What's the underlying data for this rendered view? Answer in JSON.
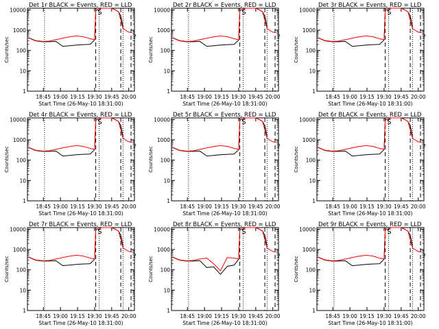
{
  "figure": {
    "ylabel": "Counts/sec",
    "xlabel": "Start Time (26-May-10 18:31:00)",
    "x_ticks": [
      "18:45",
      "19:00",
      "19:15",
      "19:30",
      "19:45",
      "20:00"
    ],
    "y_ticks": [
      "1",
      "10",
      "100",
      "1000",
      "10000"
    ],
    "colors": {
      "events": "#000000",
      "lld": "#ff0000",
      "axes": "#000000",
      "background": "#ffffff"
    },
    "y_scale": "log",
    "vertical_markers": {
      "dotted": [
        "18:46",
        "19:34",
        "19:55"
      ],
      "dashed": [
        "19:31",
        "19:53",
        "20:02"
      ]
    },
    "annotations": {
      "peak_marker": "S",
      "tail_marker": "?"
    }
  },
  "chart_data": [
    {
      "type": "line",
      "title": "Det 1r BLACK = Events, RED = LLD",
      "x": [
        "18:32",
        "18:38",
        "18:44",
        "18:50",
        "18:56",
        "19:02",
        "19:08",
        "19:14",
        "19:20",
        "19:26",
        "19:30",
        "19:31",
        "19:32",
        "19:34",
        "19:36",
        "19:45",
        "19:48",
        "19:51",
        "19:53",
        "19:55",
        "19:57",
        "20:00",
        "20:03"
      ],
      "series": [
        {
          "name": "Events",
          "color": "#000000",
          "values": [
            420,
            300,
            270,
            270,
            280,
            160,
            170,
            185,
            195,
            200,
            330,
            9000,
            10000,
            10000,
            12000,
            12000,
            10000,
            8000,
            5000,
            1500,
            null,
            null,
            null
          ]
        },
        {
          "name": "LLD",
          "color": "#ff0000",
          "values": [
            430,
            310,
            280,
            290,
            340,
            400,
            470,
            520,
            480,
            380,
            340,
            9000,
            10000,
            10000,
            12000,
            12000,
            10000,
            8000,
            3000,
            1200,
            1000,
            800,
            750
          ]
        }
      ],
      "xlim": [
        "18:31",
        "20:05"
      ],
      "ylim": [
        1,
        12000
      ]
    },
    {
      "type": "line",
      "title": "Det 2r BLACK = Events, RED = LLD",
      "x": [
        "18:32",
        "18:38",
        "18:44",
        "18:50",
        "18:56",
        "19:02",
        "19:08",
        "19:14",
        "19:20",
        "19:26",
        "19:30",
        "19:31",
        "19:32",
        "19:34",
        "19:36",
        "19:45",
        "19:48",
        "19:51",
        "19:53",
        "19:55",
        "19:57",
        "20:00",
        "20:03"
      ],
      "series": [
        {
          "name": "Events",
          "color": "#000000",
          "values": [
            420,
            300,
            270,
            270,
            280,
            160,
            170,
            185,
            195,
            200,
            330,
            9000,
            10000,
            10000,
            12000,
            12000,
            10000,
            8000,
            5000,
            1500,
            null,
            null,
            null
          ]
        },
        {
          "name": "LLD",
          "color": "#ff0000",
          "values": [
            430,
            310,
            280,
            290,
            340,
            400,
            470,
            520,
            480,
            380,
            340,
            9000,
            10000,
            10000,
            12000,
            12000,
            10000,
            8000,
            3000,
            1200,
            1000,
            800,
            750
          ]
        }
      ],
      "xlim": [
        "18:31",
        "20:05"
      ],
      "ylim": [
        1,
        12000
      ]
    },
    {
      "type": "line",
      "title": "Det 3r BLACK = Events, RED = LLD",
      "x": [
        "18:32",
        "18:38",
        "18:44",
        "18:50",
        "18:56",
        "19:02",
        "19:08",
        "19:14",
        "19:20",
        "19:26",
        "19:30",
        "19:31",
        "19:32",
        "19:34",
        "19:36",
        "19:45",
        "19:48",
        "19:51",
        "19:53",
        "19:55",
        "19:57",
        "20:00",
        "20:03"
      ],
      "series": [
        {
          "name": "Events",
          "color": "#000000",
          "values": [
            420,
            300,
            270,
            270,
            280,
            160,
            170,
            185,
            195,
            200,
            330,
            9000,
            10000,
            10000,
            12000,
            12000,
            10000,
            8000,
            5000,
            1500,
            null,
            null,
            null
          ]
        },
        {
          "name": "LLD",
          "color": "#ff0000",
          "values": [
            430,
            310,
            280,
            290,
            340,
            400,
            470,
            520,
            480,
            380,
            340,
            9000,
            10000,
            10000,
            12000,
            12000,
            10000,
            8000,
            3000,
            1200,
            1000,
            800,
            750
          ]
        }
      ],
      "xlim": [
        "18:31",
        "20:05"
      ],
      "ylim": [
        1,
        12000
      ]
    },
    {
      "type": "line",
      "title": "Det 4r BLACK = Events, RED = LLD",
      "x": [
        "18:32",
        "18:38",
        "18:44",
        "18:50",
        "18:56",
        "19:02",
        "19:08",
        "19:14",
        "19:20",
        "19:26",
        "19:30",
        "19:31",
        "19:32",
        "19:34",
        "19:36",
        "19:45",
        "19:48",
        "19:51",
        "19:53",
        "19:55",
        "19:57",
        "20:00",
        "20:03"
      ],
      "series": [
        {
          "name": "Events",
          "color": "#000000",
          "values": [
            420,
            300,
            270,
            270,
            280,
            160,
            170,
            185,
            195,
            200,
            330,
            9000,
            10000,
            10000,
            12000,
            12000,
            10000,
            8000,
            5000,
            1500,
            null,
            null,
            null
          ]
        },
        {
          "name": "LLD",
          "color": "#ff0000",
          "values": [
            430,
            310,
            280,
            290,
            340,
            400,
            470,
            520,
            480,
            380,
            340,
            9000,
            10000,
            10000,
            12000,
            12000,
            10000,
            8000,
            3000,
            1200,
            1000,
            800,
            750
          ]
        }
      ],
      "xlim": [
        "18:31",
        "20:05"
      ],
      "ylim": [
        1,
        12000
      ]
    },
    {
      "type": "line",
      "title": "Det 5r BLACK = Events, RED = LLD",
      "x": [
        "18:32",
        "18:38",
        "18:44",
        "18:50",
        "18:56",
        "19:02",
        "19:08",
        "19:14",
        "19:20",
        "19:26",
        "19:30",
        "19:31",
        "19:32",
        "19:34",
        "19:36",
        "19:45",
        "19:48",
        "19:51",
        "19:53",
        "19:55",
        "19:57",
        "20:00",
        "20:03"
      ],
      "series": [
        {
          "name": "Events",
          "color": "#000000",
          "values": [
            420,
            300,
            270,
            270,
            280,
            160,
            170,
            185,
            195,
            200,
            330,
            9000,
            10000,
            10000,
            12000,
            12000,
            10000,
            8000,
            5000,
            1500,
            null,
            null,
            null
          ]
        },
        {
          "name": "LLD",
          "color": "#ff0000",
          "values": [
            430,
            310,
            280,
            290,
            340,
            400,
            470,
            520,
            480,
            380,
            340,
            9000,
            10000,
            10000,
            12000,
            12000,
            10000,
            8000,
            3000,
            1200,
            1000,
            800,
            750
          ]
        }
      ],
      "xlim": [
        "18:31",
        "20:05"
      ],
      "ylim": [
        1,
        12000
      ]
    },
    {
      "type": "line",
      "title": "Det 6r BLACK = Events, RED = LLD",
      "x": [
        "18:32",
        "18:38",
        "18:44",
        "18:50",
        "18:56",
        "19:02",
        "19:08",
        "19:14",
        "19:20",
        "19:26",
        "19:30",
        "19:31",
        "19:32",
        "19:34",
        "19:36",
        "19:45",
        "19:48",
        "19:51",
        "19:53",
        "19:55",
        "19:57",
        "20:00",
        "20:03"
      ],
      "series": [
        {
          "name": "Events",
          "color": "#000000",
          "values": [
            420,
            300,
            270,
            270,
            280,
            160,
            170,
            185,
            195,
            200,
            330,
            9000,
            10000,
            10000,
            12000,
            12000,
            10000,
            8000,
            5000,
            1500,
            null,
            null,
            null
          ]
        },
        {
          "name": "LLD",
          "color": "#ff0000",
          "values": [
            430,
            310,
            280,
            290,
            340,
            400,
            470,
            520,
            480,
            380,
            340,
            9000,
            10000,
            10000,
            12000,
            12000,
            10000,
            8000,
            3000,
            1200,
            1000,
            800,
            750
          ]
        }
      ],
      "xlim": [
        "18:31",
        "20:05"
      ],
      "ylim": [
        1,
        12000
      ]
    },
    {
      "type": "line",
      "title": "Det 7r BLACK = Events, RED = LLD",
      "x": [
        "18:32",
        "18:38",
        "18:44",
        "18:50",
        "18:56",
        "19:02",
        "19:08",
        "19:14",
        "19:20",
        "19:26",
        "19:30",
        "19:31",
        "19:32",
        "19:34",
        "19:36",
        "19:45",
        "19:48",
        "19:51",
        "19:53",
        "19:55",
        "19:57",
        "20:00",
        "20:03"
      ],
      "series": [
        {
          "name": "Events",
          "color": "#000000",
          "values": [
            420,
            300,
            270,
            270,
            280,
            160,
            170,
            185,
            195,
            200,
            330,
            9000,
            10000,
            10000,
            12000,
            12000,
            10000,
            8000,
            5000,
            1500,
            null,
            null,
            null
          ]
        },
        {
          "name": "LLD",
          "color": "#ff0000",
          "values": [
            430,
            310,
            280,
            290,
            340,
            400,
            470,
            520,
            480,
            380,
            340,
            9000,
            10000,
            10000,
            12000,
            12000,
            10000,
            8000,
            3000,
            1200,
            1000,
            800,
            750
          ]
        }
      ],
      "xlim": [
        "18:31",
        "20:05"
      ],
      "ylim": [
        1,
        12000
      ]
    },
    {
      "type": "line",
      "title": "Det 8r BLACK = Events, RED = LLD",
      "x": [
        "18:32",
        "18:38",
        "18:44",
        "18:50",
        "18:56",
        "19:02",
        "19:08",
        "19:14",
        "19:20",
        "19:26",
        "19:30",
        "19:31",
        "19:32",
        "19:34",
        "19:36",
        "19:45",
        "19:48",
        "19:51",
        "19:53",
        "19:55",
        "19:57",
        "20:00",
        "20:03"
      ],
      "series": [
        {
          "name": "Events",
          "color": "#000000",
          "values": [
            420,
            300,
            270,
            270,
            280,
            130,
            140,
            60,
            150,
            170,
            330,
            9000,
            10000,
            10000,
            12000,
            12000,
            10000,
            8000,
            5000,
            1500,
            null,
            null,
            null
          ]
        },
        {
          "name": "LLD",
          "color": "#ff0000",
          "values": [
            430,
            310,
            280,
            290,
            340,
            380,
            200,
            90,
            400,
            380,
            340,
            9000,
            10000,
            10000,
            12000,
            12000,
            10000,
            8000,
            3000,
            1200,
            1000,
            800,
            750
          ]
        }
      ],
      "xlim": [
        "18:31",
        "20:05"
      ],
      "ylim": [
        1,
        12000
      ]
    },
    {
      "type": "line",
      "title": "Det 9r BLACK = Events, RED = LLD",
      "x": [
        "18:32",
        "18:38",
        "18:44",
        "18:50",
        "18:56",
        "19:02",
        "19:08",
        "19:14",
        "19:20",
        "19:26",
        "19:30",
        "19:31",
        "19:32",
        "19:34",
        "19:36",
        "19:45",
        "19:48",
        "19:51",
        "19:53",
        "19:55",
        "19:57",
        "20:00",
        "20:03"
      ],
      "series": [
        {
          "name": "Events",
          "color": "#000000",
          "values": [
            420,
            300,
            270,
            270,
            280,
            160,
            170,
            185,
            195,
            200,
            330,
            9000,
            10000,
            10000,
            12000,
            12000,
            10000,
            8000,
            5000,
            1500,
            null,
            null,
            null
          ]
        },
        {
          "name": "LLD",
          "color": "#ff0000",
          "values": [
            430,
            310,
            280,
            290,
            340,
            400,
            470,
            520,
            480,
            380,
            340,
            9000,
            10000,
            10000,
            12000,
            12000,
            10000,
            8000,
            3000,
            1200,
            1000,
            800,
            750
          ]
        }
      ],
      "xlim": [
        "18:31",
        "20:05"
      ],
      "ylim": [
        1,
        12000
      ]
    }
  ]
}
